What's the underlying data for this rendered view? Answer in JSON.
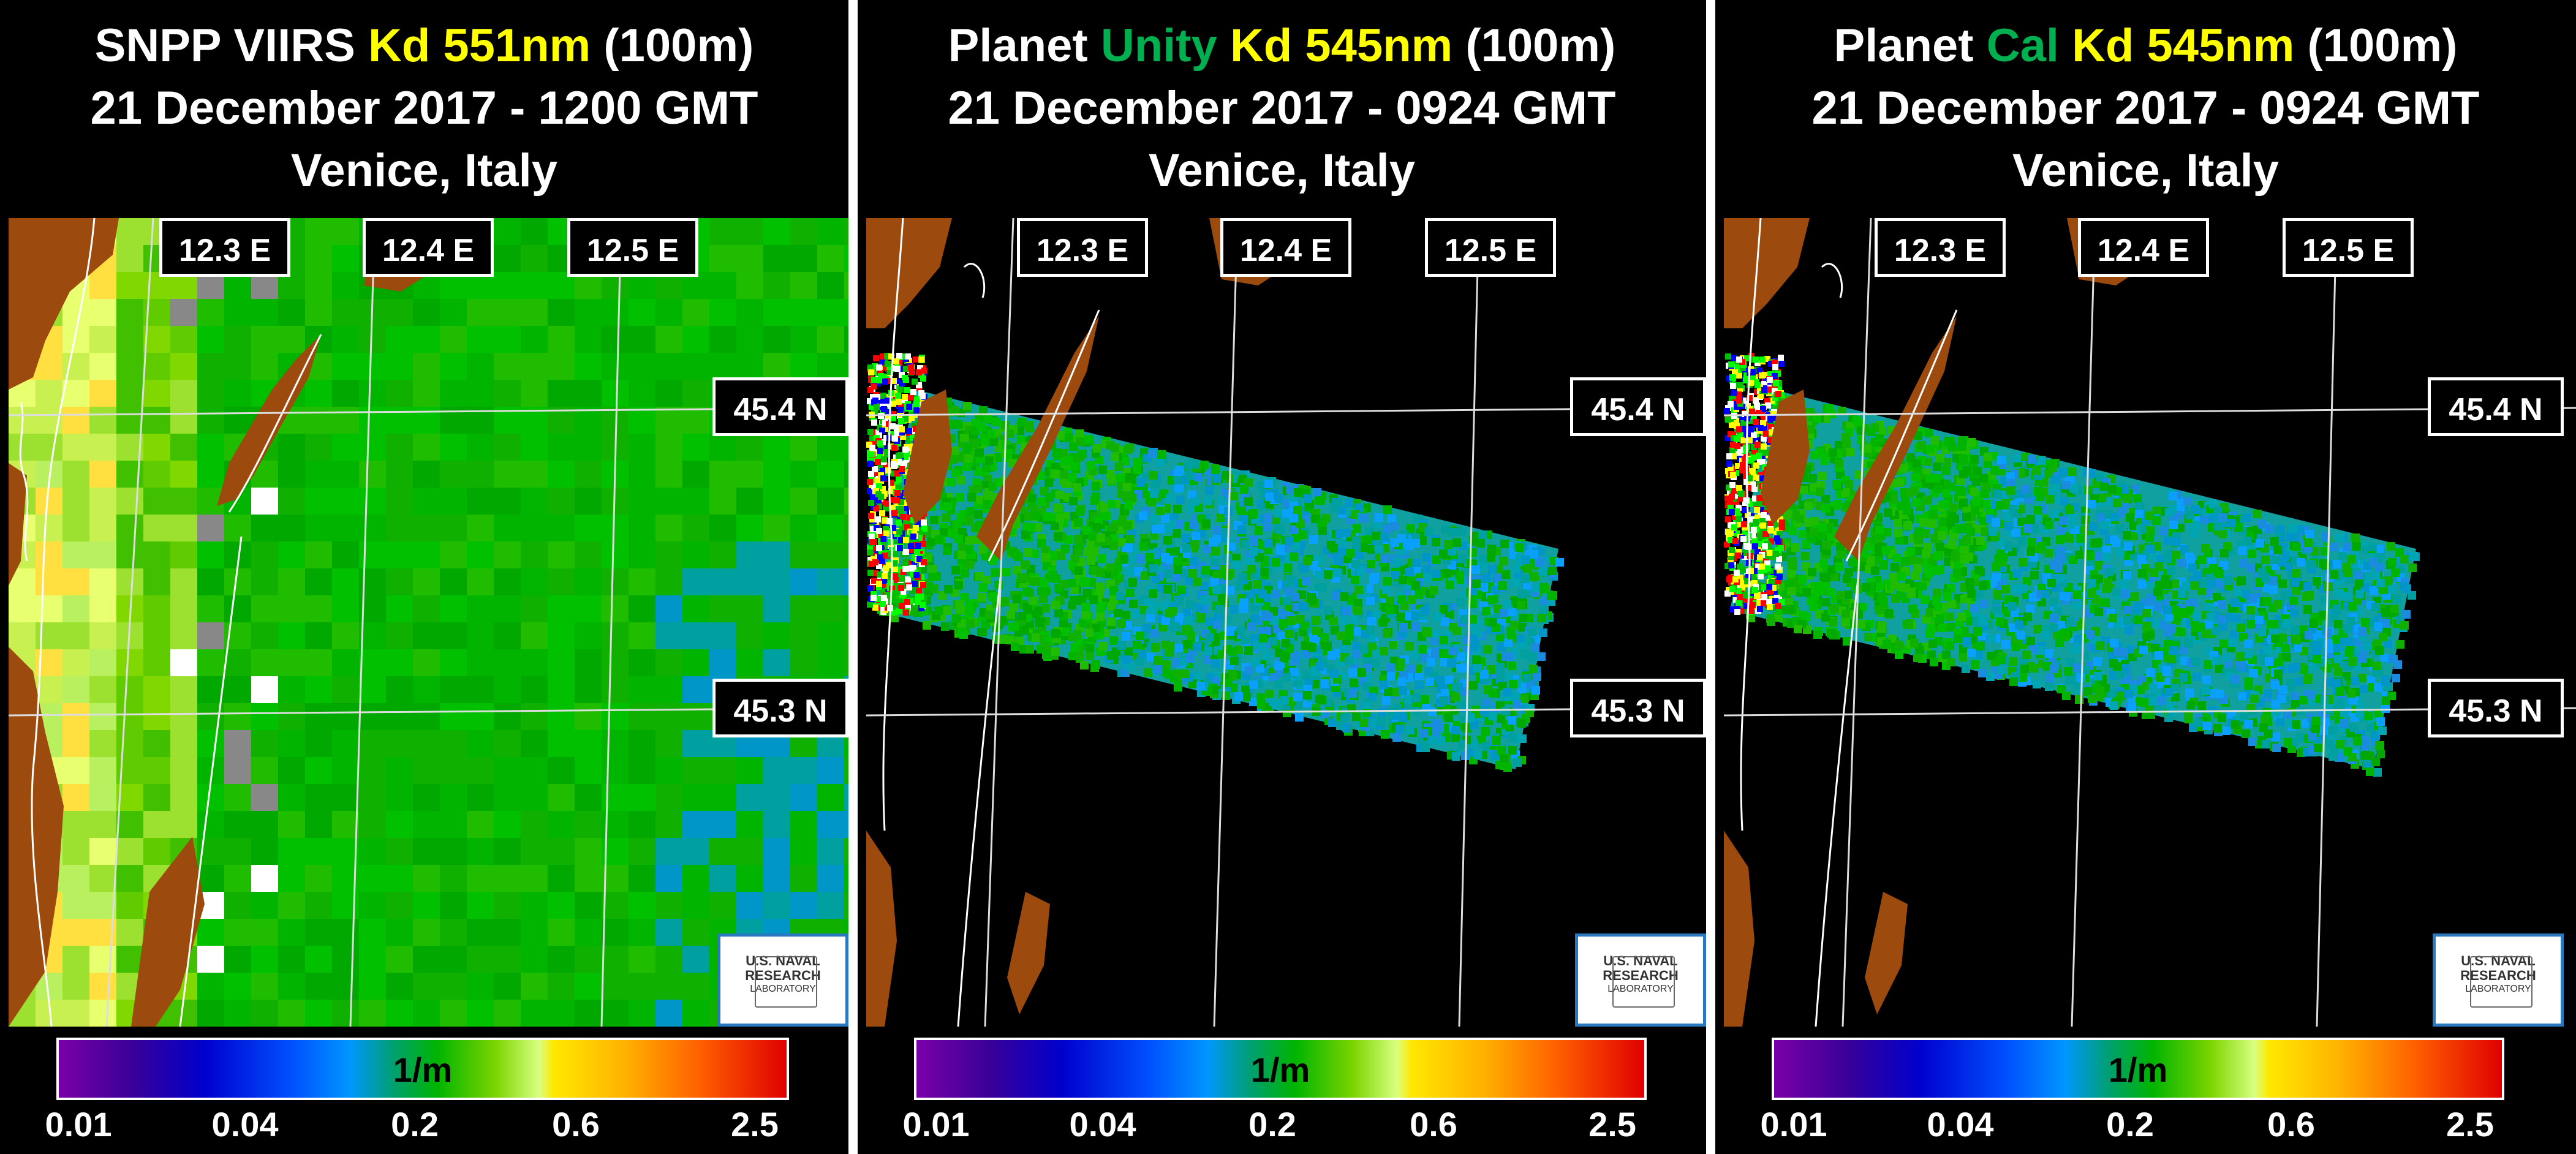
{
  "colors": {
    "background": "#000000",
    "land": "#9c4a0e",
    "title_text": "#ffffff",
    "kd_highlight": "#ffff00",
    "platform_highlight": "#00b050",
    "coastline": "#ffffff",
    "nrl_border": "#2a78c0"
  },
  "panels": [
    {
      "title": {
        "line1_prefix": "SNPP VIIRS ",
        "line1_platform": "",
        "line1_kd": "Kd 551nm",
        "line1_suffix": " (100m)",
        "line2": "21 December 2017 - 1200 GMT",
        "line3": "Venice, Italy"
      },
      "lon_labels": [
        "12.3 E",
        "12.4 E",
        "12.5 E"
      ],
      "lat_labels": [
        "45.4 N",
        "45.3 N"
      ],
      "logo": {
        "line1": "U.S. NAVAL",
        "line2": "RESEARCH",
        "line3": "LABORATORY"
      },
      "colorbar": {
        "unit": "1/m",
        "ticks": [
          "0.01",
          "0.04",
          "0.2",
          "0.6",
          "2.5"
        ]
      }
    },
    {
      "title": {
        "line1_prefix": "Planet ",
        "line1_platform": "Unity",
        "line1_kd": " Kd 545nm",
        "line1_suffix": " (100m)",
        "line2": "21 December 2017 - 0924 GMT",
        "line3": "Venice, Italy"
      },
      "lon_labels": [
        "12.3 E",
        "12.4 E",
        "12.5 E"
      ],
      "lat_labels": [
        "45.4 N",
        "45.3 N"
      ],
      "logo": {
        "line1": "U.S. NAVAL",
        "line2": "RESEARCH",
        "line3": "LABORATORY"
      },
      "colorbar": {
        "unit": "1/m",
        "ticks": [
          "0.01",
          "0.04",
          "0.2",
          "0.6",
          "2.5"
        ]
      }
    },
    {
      "title": {
        "line1_prefix": "Planet ",
        "line1_platform": "Cal",
        "line1_kd": " Kd 545nm",
        "line1_suffix": " (100m)",
        "line2": "21 December 2017 - 0924 GMT",
        "line3": "Venice, Italy"
      },
      "lon_labels": [
        "12.3 E",
        "12.4 E",
        "12.5 E"
      ],
      "lat_labels": [
        "45.4 N",
        "45.3 N"
      ],
      "logo": {
        "line1": "U.S. NAVAL",
        "line2": "RESEARCH",
        "line3": "LABORATORY"
      },
      "colorbar": {
        "unit": "1/m",
        "ticks": [
          "0.01",
          "0.04",
          "0.2",
          "0.6",
          "2.5"
        ]
      }
    }
  ]
}
